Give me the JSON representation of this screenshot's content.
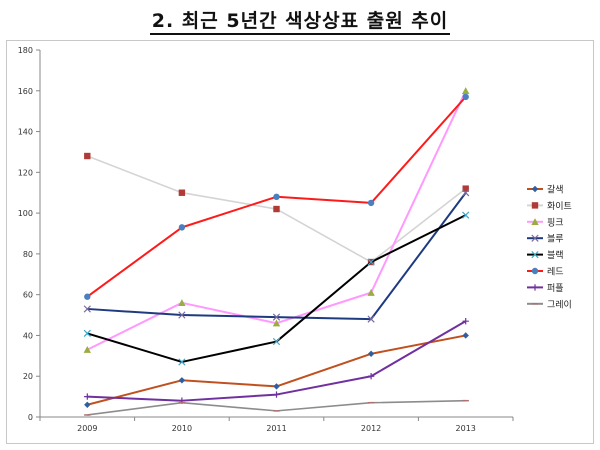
{
  "title": "2. 최근 5년간 색상상표 출원 추이",
  "chart_data": {
    "type": "line",
    "title": "2. 최근 5년간 색상상표 출원 추이",
    "categories": [
      "2009",
      "2010",
      "2011",
      "2012",
      "2013"
    ],
    "ylim": [
      0,
      180
    ],
    "yticks": [
      0,
      20,
      40,
      60,
      80,
      100,
      120,
      140,
      160,
      180
    ],
    "grid": false,
    "legend_position": "right",
    "series": [
      {
        "name": "갈색",
        "color": "#c0501e",
        "marker": "diamond",
        "marker_color": "#2f5f9e",
        "values": [
          6,
          18,
          15,
          31,
          40
        ]
      },
      {
        "name": "화이트",
        "color": "#d4d4d4",
        "marker": "square",
        "marker_color": "#b03a36",
        "values": [
          128,
          110,
          102,
          76,
          112
        ]
      },
      {
        "name": "핑크",
        "color": "#ff99ff",
        "marker": "triangle",
        "marker_color": "#9aae40",
        "values": [
          33,
          56,
          46,
          61,
          160
        ]
      },
      {
        "name": "블루",
        "color": "#1f3b80",
        "marker": "x",
        "marker_color": "#7a6aa0",
        "values": [
          53,
          50,
          49,
          48,
          110
        ]
      },
      {
        "name": "블랙",
        "color": "#000000",
        "marker": "x",
        "marker_color": "#3fa8c8",
        "values": [
          41,
          27,
          37,
          76,
          99
        ]
      },
      {
        "name": "레드",
        "color": "#ff1a1a",
        "marker": "circle",
        "marker_color": "#4a7fc0",
        "values": [
          59,
          93,
          108,
          105,
          157
        ]
      },
      {
        "name": "퍼플",
        "color": "#7030a0",
        "marker": "plus",
        "marker_color": "#7030a0",
        "values": [
          10,
          8,
          11,
          20,
          47
        ]
      },
      {
        "name": "그레이",
        "color": "#8c8c8c",
        "marker": "dash",
        "marker_color": "#b07070",
        "values": [
          1,
          7,
          3,
          7,
          8
        ]
      }
    ]
  }
}
